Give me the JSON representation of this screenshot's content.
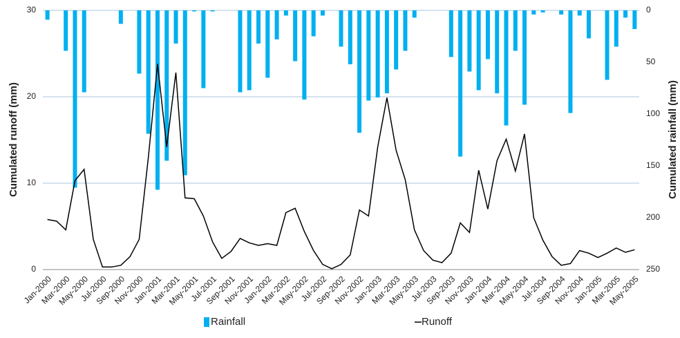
{
  "chart_data": {
    "type": "bar-line",
    "categories": [
      "Jan-2000",
      null,
      "Mar-2000",
      null,
      "May-2000",
      null,
      "Jul-2000",
      null,
      "Sep-2000",
      null,
      "Nov-2000",
      null,
      "Jan-2001",
      null,
      "Mar-2001",
      null,
      "May-2001",
      null,
      "Jul-2001",
      null,
      "Sep-2001",
      null,
      "Nov-2001",
      null,
      "Jan-2002",
      null,
      "Mar-2002",
      null,
      "May-2002",
      null,
      "Jul-2002",
      null,
      "Sep-2002",
      null,
      "Nov-2002",
      null,
      "Jan-2003",
      null,
      "Mar-2003",
      null,
      "May-2003",
      null,
      "Jul-2003",
      null,
      "Sep-2003",
      null,
      "Nov-2003",
      null,
      "Jan-2004",
      null,
      "Mar-2004",
      null,
      "May-2004",
      null,
      "Jul-2004",
      null,
      "Sep-2004",
      null,
      "Nov-2004",
      null,
      "Jan-2005",
      null,
      "Mar-2005",
      null,
      "May-2005"
    ],
    "series": [
      {
        "name": "Rainfall",
        "type": "bar",
        "axis": "y2",
        "color": "#00b0f0",
        "values": [
          9,
          0,
          39,
          171,
          79,
          0,
          0,
          0,
          13,
          0,
          61,
          119,
          173,
          145,
          32,
          159,
          1,
          75,
          1,
          0,
          0,
          79,
          77,
          32,
          65,
          28,
          5,
          49,
          86,
          25,
          5,
          0,
          35,
          52,
          118,
          87,
          84,
          80,
          57,
          39,
          7,
          0,
          0,
          0,
          45,
          141,
          59,
          77,
          47,
          80,
          111,
          39,
          91,
          4,
          2,
          0,
          4,
          99,
          5,
          27,
          0,
          67,
          35,
          7,
          18
        ]
      },
      {
        "name": "Runoff",
        "type": "line",
        "color": "#000000",
        "values": [
          5.8,
          5.6,
          4.6,
          10.3,
          11.6,
          3.5,
          0.3,
          0.3,
          0.5,
          1.5,
          3.5,
          13,
          23.8,
          14.2,
          22.8,
          8.3,
          8.2,
          6.2,
          3.2,
          1.3,
          2.1,
          3.6,
          3.1,
          2.8,
          3.0,
          2.8,
          6.6,
          7.1,
          4.4,
          2.2,
          0.6,
          0.1,
          0.6,
          1.7,
          6.9,
          6.2,
          14.2,
          19.9,
          13.8,
          10.4,
          4.6,
          2.2,
          1.1,
          0.8,
          1.9,
          5.4,
          4.3,
          11.5,
          7.0,
          12.6,
          15.1,
          11.4,
          15.7,
          6.0,
          3.4,
          1.5,
          0.5,
          0.7,
          2.2,
          1.9,
          1.4,
          1.9,
          2.5,
          2.0,
          2.3
        ]
      }
    ],
    "y_label": "Cumulated runoff (mm)",
    "y2_label": "Cumulated rainfall (mm)",
    "ylim": [
      0,
      30
    ],
    "yticks": [
      0,
      10,
      20,
      30
    ],
    "y2lim": [
      0,
      250
    ],
    "y2ticks": [
      0,
      50,
      100,
      150,
      200,
      250
    ],
    "y2_inverted": true,
    "grid": true,
    "legend": "bottom"
  }
}
